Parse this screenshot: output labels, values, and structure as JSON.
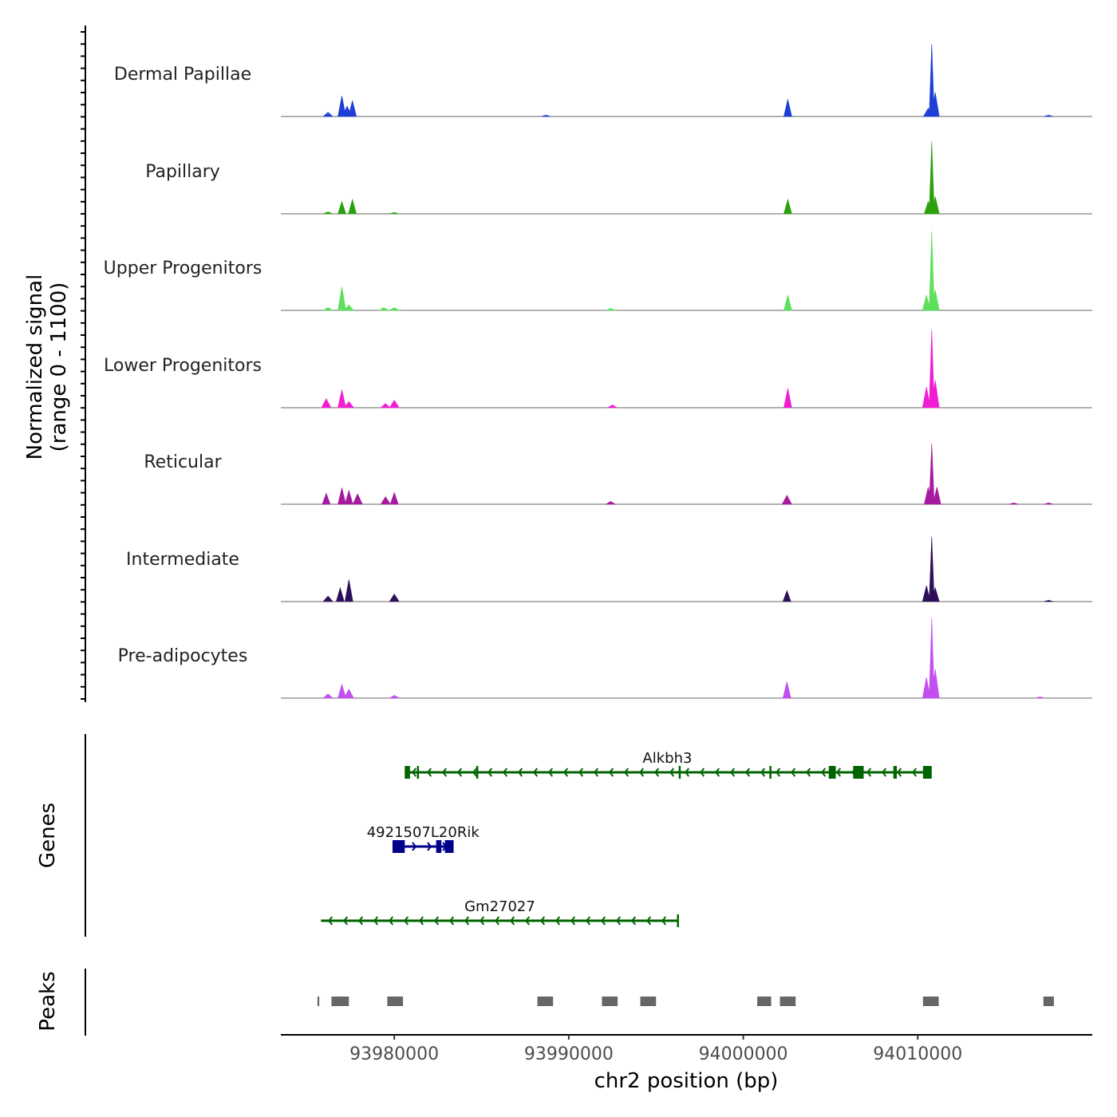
{
  "chart_data": {
    "type": "area",
    "title": "",
    "xlabel": "chr2 position (bp)",
    "ylabel_line1": "Normalized signal",
    "ylabel_line2": "(range 0 - 1100)",
    "xlim": [
      93973500,
      94020000
    ],
    "ylim": [
      0,
      1100
    ],
    "x_ticks": [
      {
        "value": 93980000,
        "label": "93980000"
      },
      {
        "value": 93990000,
        "label": "93990000"
      },
      {
        "value": 94000000,
        "label": "94000000"
      },
      {
        "value": 94010000,
        "label": "94010000"
      }
    ],
    "series": [
      {
        "name": "Dermal Papillae",
        "color": "#1f3fd6",
        "peaks": [
          [
            93976200,
            60
          ],
          [
            93977000,
            300
          ],
          [
            93977300,
            150
          ],
          [
            93977600,
            230
          ],
          [
            93988700,
            20
          ],
          [
            94002550,
            250
          ],
          [
            94010600,
            120
          ],
          [
            94010800,
            1050
          ],
          [
            94011000,
            350
          ],
          [
            94017500,
            20
          ]
        ]
      },
      {
        "name": "Papillary",
        "color": "#2aa10f",
        "peaks": [
          [
            93976200,
            30
          ],
          [
            93977000,
            180
          ],
          [
            93977600,
            210
          ],
          [
            93980000,
            20
          ],
          [
            94002550,
            210
          ],
          [
            94010600,
            180
          ],
          [
            94010800,
            1050
          ],
          [
            94011000,
            250
          ]
        ]
      },
      {
        "name": "Upper Progenitors",
        "color": "#5de05a",
        "peaks": [
          [
            93976200,
            40
          ],
          [
            93977000,
            340
          ],
          [
            93977400,
            80
          ],
          [
            93979400,
            40
          ],
          [
            93980000,
            40
          ],
          [
            93992400,
            30
          ],
          [
            94002550,
            220
          ],
          [
            94010500,
            220
          ],
          [
            94010800,
            1150
          ],
          [
            94011000,
            300
          ]
        ]
      },
      {
        "name": "Lower Progenitors",
        "color": "#f01dd3",
        "peaks": [
          [
            93976100,
            130
          ],
          [
            93977000,
            260
          ],
          [
            93977400,
            90
          ],
          [
            93979500,
            60
          ],
          [
            93980000,
            110
          ],
          [
            93992500,
            40
          ],
          [
            94002550,
            280
          ],
          [
            94010500,
            300
          ],
          [
            94010800,
            1130
          ],
          [
            94011000,
            400
          ]
        ]
      },
      {
        "name": "Reticular",
        "color": "#a61aa0",
        "peaks": [
          [
            93976100,
            160
          ],
          [
            93977000,
            240
          ],
          [
            93977400,
            200
          ],
          [
            93977900,
            150
          ],
          [
            93979500,
            110
          ],
          [
            93980000,
            170
          ],
          [
            93992400,
            40
          ],
          [
            94002500,
            130
          ],
          [
            94010600,
            250
          ],
          [
            94010800,
            880
          ],
          [
            94011100,
            250
          ],
          [
            94015500,
            20
          ],
          [
            94017500,
            20
          ]
        ]
      },
      {
        "name": "Intermediate",
        "color": "#2e0f5a",
        "peaks": [
          [
            93976200,
            80
          ],
          [
            93976900,
            200
          ],
          [
            93977400,
            320
          ],
          [
            93980000,
            110
          ],
          [
            94002500,
            160
          ],
          [
            94010500,
            230
          ],
          [
            94010800,
            940
          ],
          [
            94011000,
            200
          ],
          [
            94017500,
            20
          ]
        ]
      },
      {
        "name": "Pre-adipocytes",
        "color": "#c34ff0",
        "peaks": [
          [
            93976200,
            60
          ],
          [
            93977000,
            200
          ],
          [
            93977400,
            130
          ],
          [
            93980000,
            40
          ],
          [
            94002500,
            240
          ],
          [
            94010500,
            300
          ],
          [
            94010800,
            1160
          ],
          [
            94011000,
            420
          ],
          [
            94017000,
            20
          ]
        ]
      }
    ],
    "genes": [
      {
        "name": "Alkbh3",
        "strand": "-",
        "start": 93980600,
        "end": 94010700,
        "color": "#006400",
        "exons": [
          [
            93980600,
            93980900
          ],
          [
            93981300,
            93981400
          ],
          [
            93984700,
            93984800
          ],
          [
            93996300,
            93996400
          ],
          [
            94001500,
            94001600
          ],
          [
            94004900,
            94005300
          ],
          [
            94006300,
            94006900
          ],
          [
            94008600,
            94008800
          ],
          [
            94010300,
            94010800
          ]
        ]
      },
      {
        "name": "4921507L20Rik",
        "strand": "+",
        "start": 93979900,
        "end": 93983400,
        "color": "#00008b",
        "exons": [
          [
            93979900,
            93980600
          ],
          [
            93982400,
            93982700
          ],
          [
            93982900,
            93983400
          ]
        ]
      },
      {
        "name": "Gm27027",
        "strand": "-",
        "start": 93975800,
        "end": 93996300,
        "color": "#006400",
        "exons": [
          [
            93996200,
            93996300
          ]
        ]
      }
    ],
    "peaks_regions": [
      [
        93975600,
        93975700
      ],
      [
        93976400,
        93977400
      ],
      [
        93979600,
        93980500
      ],
      [
        93988200,
        93989100
      ],
      [
        93991900,
        93992800
      ],
      [
        93994100,
        93995000
      ],
      [
        94000800,
        94001600
      ],
      [
        94002100,
        94003000
      ],
      [
        94010300,
        94011200
      ],
      [
        94017200,
        94017800
      ]
    ],
    "track_labels": {
      "genes": "Genes",
      "peaks": "Peaks"
    }
  }
}
